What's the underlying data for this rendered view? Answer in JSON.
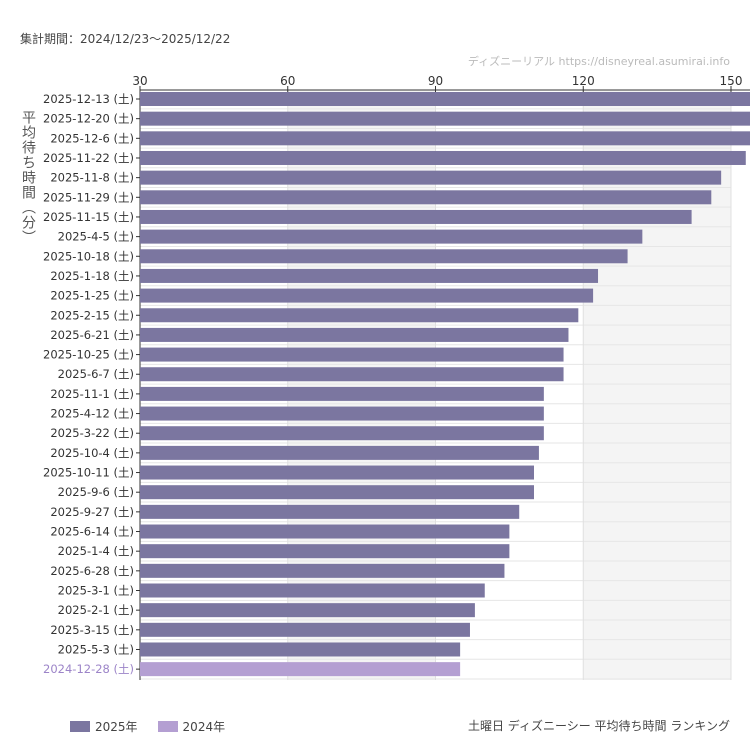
{
  "header": {
    "period": "集計期間：2024/12/23〜2025/12/22",
    "credit": "ディズニーリアル https://disneyreal.asumirai.info"
  },
  "footer": {
    "subtitle": "土曜日 ディズニーシー 平均待ち時間 ランキング"
  },
  "colors": {
    "y2025": "#7b76a0",
    "y2024": "#b49fd2",
    "band": "#f4f4f4"
  },
  "chart_data": {
    "type": "bar",
    "orientation": "horizontal",
    "ylabel": "平均待ち時間（分）",
    "xlim": [
      30,
      150
    ],
    "xticks": [
      "30",
      "60",
      "90",
      "120",
      "150"
    ],
    "grid": true,
    "legend_position": "bottom-left",
    "legend": [
      {
        "name": "2025年",
        "color": "#7b76a0"
      },
      {
        "name": "2024年",
        "color": "#b49fd2"
      }
    ],
    "categories": [
      "2025-12-13 (土)",
      "2025-12-20 (土)",
      "2025-12-6 (土)",
      "2025-11-22 (土)",
      "2025-11-8 (土)",
      "2025-11-29 (土)",
      "2025-11-15 (土)",
      "2025-4-5 (土)",
      "2025-10-18 (土)",
      "2025-1-18 (土)",
      "2025-1-25 (土)",
      "2025-2-15 (土)",
      "2025-6-21 (土)",
      "2025-10-25 (土)",
      "2025-6-7 (土)",
      "2025-11-1 (土)",
      "2025-4-12 (土)",
      "2025-3-22 (土)",
      "2025-10-4 (土)",
      "2025-10-11 (土)",
      "2025-9-6 (土)",
      "2025-9-27 (土)",
      "2025-6-14 (土)",
      "2025-1-4 (土)",
      "2025-6-28 (土)",
      "2025-3-1 (土)",
      "2025-2-1 (土)",
      "2025-3-15 (土)",
      "2025-5-3 (土)",
      "2024-12-28 (土)"
    ],
    "values": [
      155,
      155,
      155,
      153,
      148,
      146,
      142,
      132,
      129,
      123,
      122,
      119,
      117,
      116,
      116,
      112,
      112,
      112,
      111,
      110,
      110,
      107,
      105,
      105,
      104,
      100,
      98,
      97,
      95,
      95
    ],
    "years": [
      "2025",
      "2025",
      "2025",
      "2025",
      "2025",
      "2025",
      "2025",
      "2025",
      "2025",
      "2025",
      "2025",
      "2025",
      "2025",
      "2025",
      "2025",
      "2025",
      "2025",
      "2025",
      "2025",
      "2025",
      "2025",
      "2025",
      "2025",
      "2025",
      "2025",
      "2025",
      "2025",
      "2025",
      "2025",
      "2024"
    ]
  }
}
